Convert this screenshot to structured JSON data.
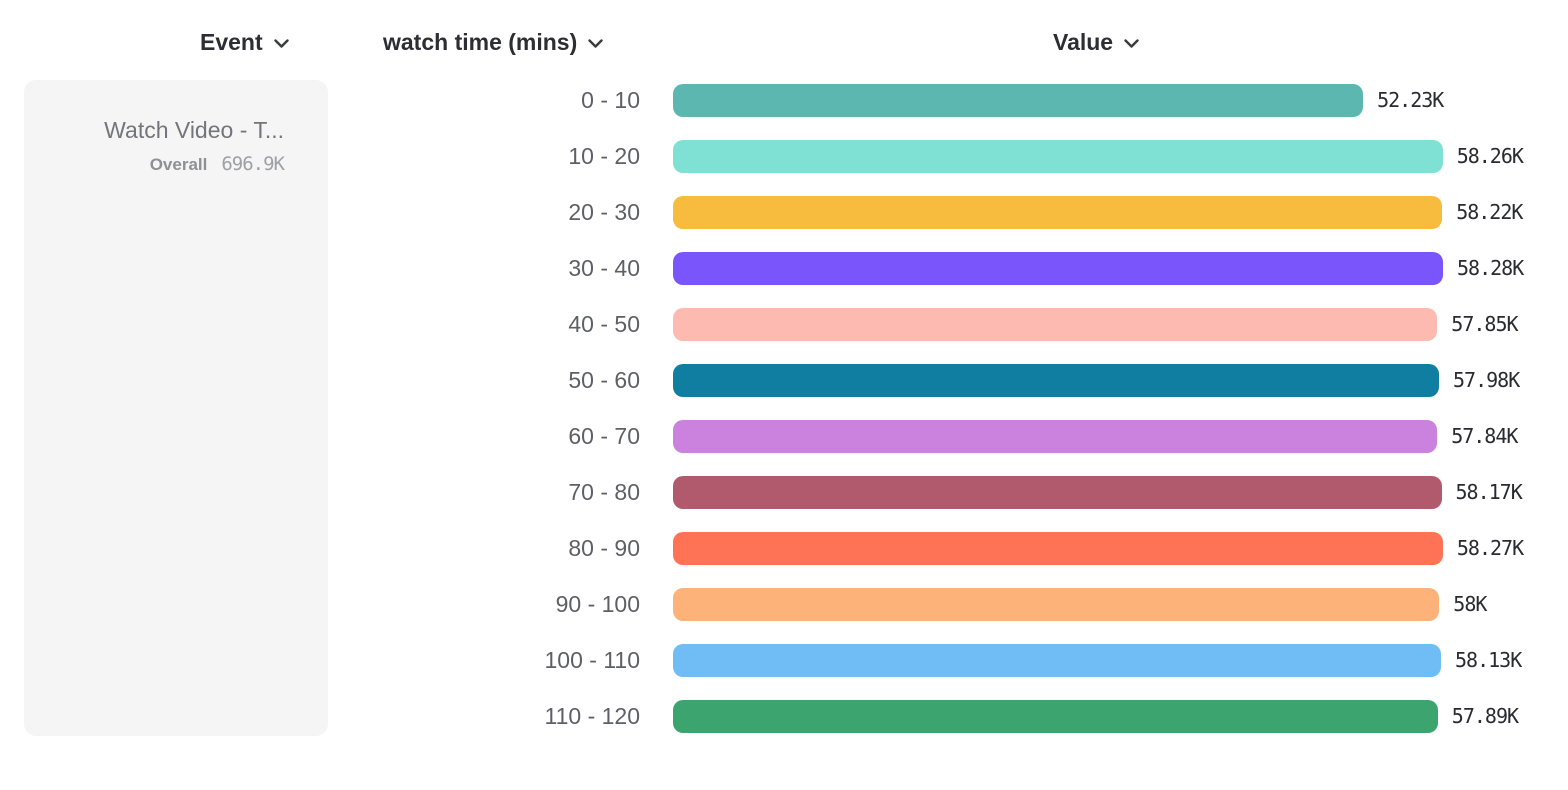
{
  "header": {
    "columns": [
      {
        "label": "Event"
      },
      {
        "label": "watch time (mins)"
      },
      {
        "label": "Value"
      }
    ]
  },
  "event_card": {
    "title": "Watch Video - T...",
    "overall_label": "Overall",
    "overall_value": "696.9K"
  },
  "chart_data": {
    "type": "bar",
    "orientation": "horizontal",
    "title": "",
    "xlabel": "Value",
    "ylabel": "watch time (mins)",
    "grid": false,
    "legend": false,
    "categories": [
      "0 - 10",
      "10 - 20",
      "20 - 30",
      "30 - 40",
      "40 - 50",
      "50 - 60",
      "60 - 70",
      "70 - 80",
      "80 - 90",
      "90 - 100",
      "100 - 110",
      "110 - 120"
    ],
    "values": [
      52230,
      58260,
      58220,
      58280,
      57850,
      57980,
      57840,
      58170,
      58270,
      58000,
      58130,
      57890
    ],
    "value_labels": [
      "52.23K",
      "58.26K",
      "58.22K",
      "58.28K",
      "57.85K",
      "57.98K",
      "57.84K",
      "58.17K",
      "58.27K",
      "58K",
      "58.13K",
      "57.89K"
    ],
    "colors": [
      "#5cb7b0",
      "#7fe0d4",
      "#f7bb3d",
      "#7a55fb",
      "#fdbab0",
      "#107ea0",
      "#ca82de",
      "#b15a6e",
      "#fe7255",
      "#fcb278",
      "#70bcf4",
      "#3ca46e"
    ],
    "max_value": 58280,
    "xlim": [
      0,
      58280
    ]
  },
  "icons": {
    "chevron_down": "chevron-down"
  }
}
